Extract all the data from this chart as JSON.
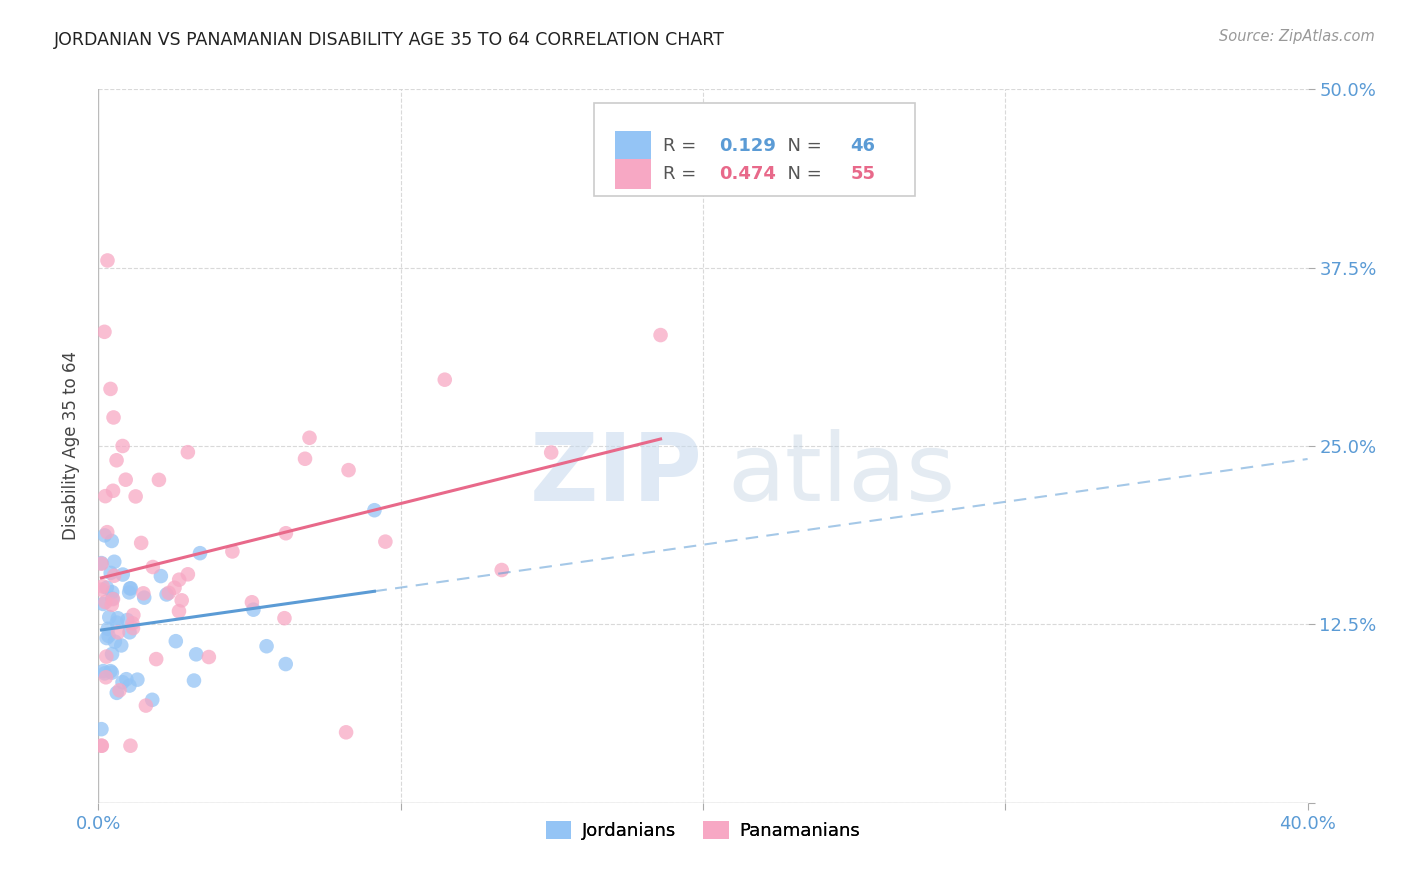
{
  "title": "JORDANIAN VS PANAMANIAN DISABILITY AGE 35 TO 64 CORRELATION CHART",
  "source": "Source: ZipAtlas.com",
  "ylabel": "Disability Age 35 to 64",
  "xlim": [
    0.0,
    0.4
  ],
  "ylim": [
    0.0,
    0.5
  ],
  "xticks": [
    0.0,
    0.1,
    0.2,
    0.3,
    0.4
  ],
  "xticklabels": [
    "0.0%",
    "",
    "",
    "",
    "40.0%"
  ],
  "yticks": [
    0.0,
    0.125,
    0.25,
    0.375,
    0.5
  ],
  "yticklabels": [
    "",
    "12.5%",
    "25.0%",
    "37.5%",
    "50.0%"
  ],
  "jordanians_R": 0.129,
  "jordanians_N": 46,
  "panamanians_R": 0.474,
  "panamanians_N": 55,
  "jordanian_color": "#94c4f5",
  "panamanian_color": "#f7a8c4",
  "jordanian_line_color": "#5b9bd5",
  "panamanian_line_color": "#e8698a",
  "background_color": "#ffffff",
  "grid_color": "#d0d0d0"
}
